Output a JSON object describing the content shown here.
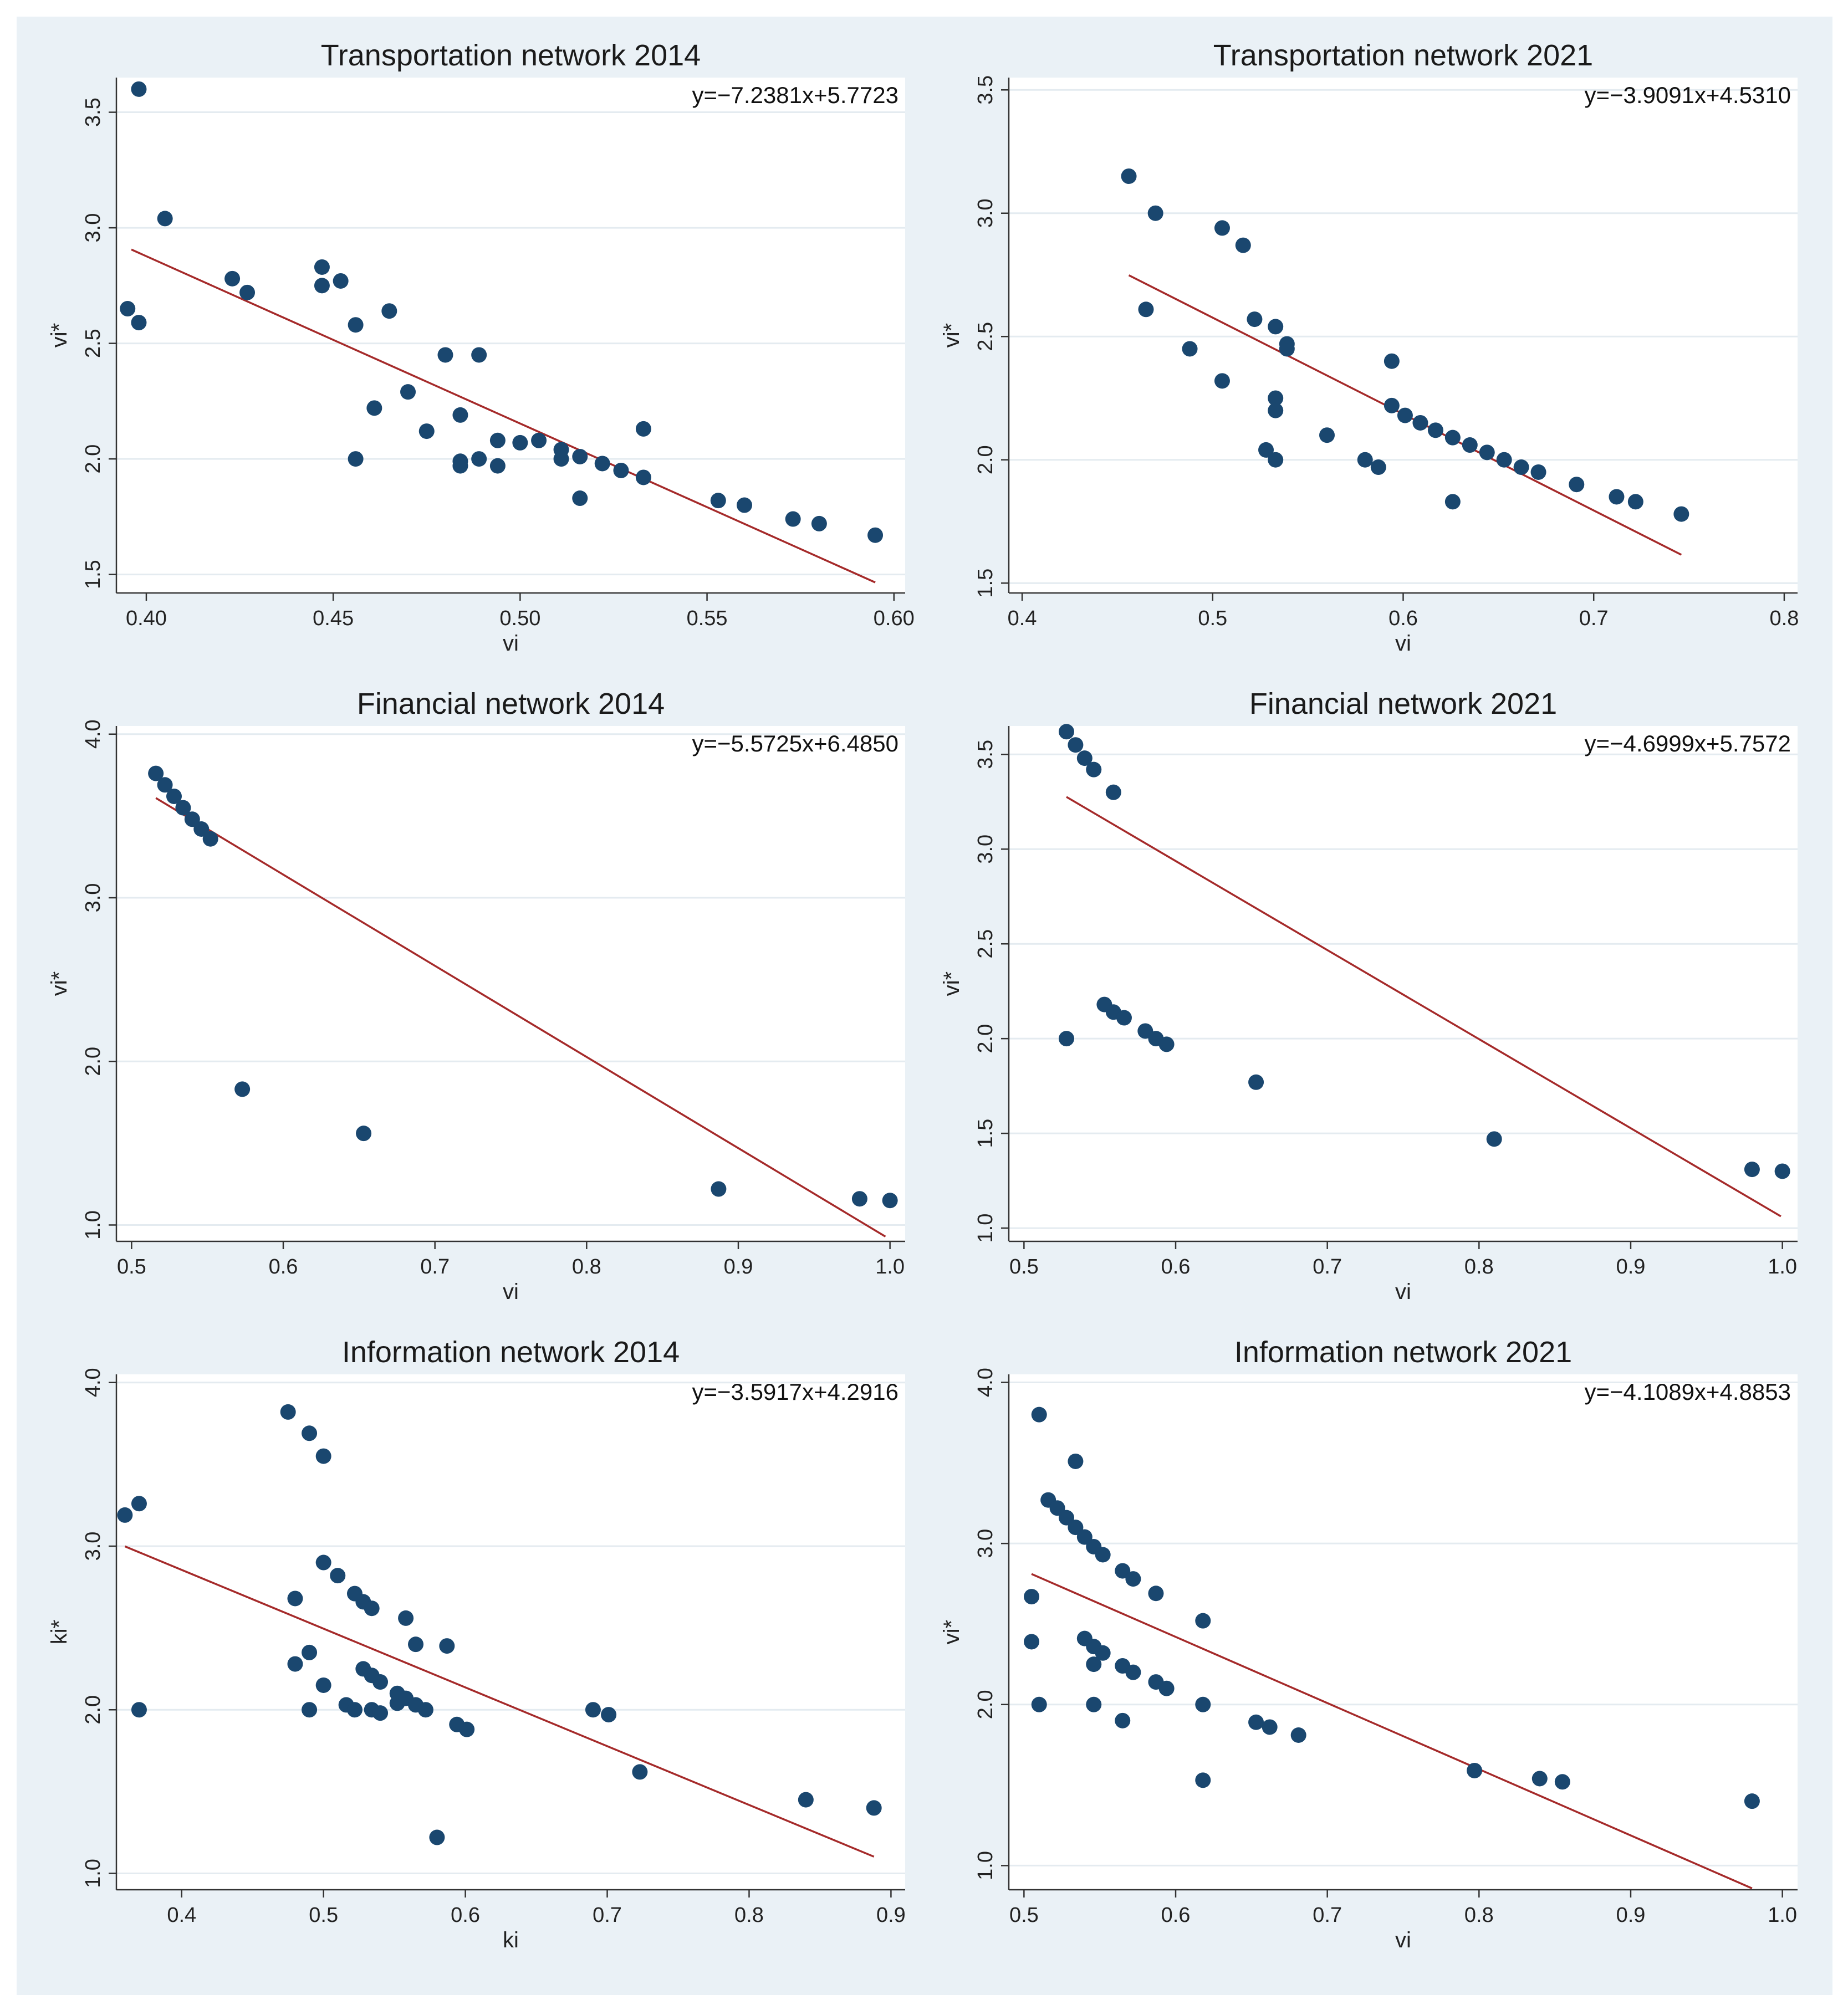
{
  "colors": {
    "background": "#eaf1f6",
    "plot_bg": "#ffffff",
    "grid": "#e4ebf0",
    "point": "#1a476f",
    "fit": "#a52a2a"
  },
  "chart_data": [
    {
      "type": "scatter",
      "title": "Transportation network 2014",
      "xlabel": "vi",
      "ylabel": "vi*",
      "equation": "y=−7.2381x+5.7723",
      "xlim": [
        0.392,
        0.603
      ],
      "ylim": [
        1.42,
        3.65
      ],
      "xticks": [
        "0.40",
        "0.45",
        "0.50",
        "0.55",
        "0.60"
      ],
      "yticks": [
        "1.5",
        "2.0",
        "2.5",
        "3.0",
        "3.5"
      ],
      "fit_x": [
        0.396,
        0.595
      ],
      "points": [
        [
          0.395,
          2.65
        ],
        [
          0.398,
          3.6
        ],
        [
          0.398,
          2.59
        ],
        [
          0.405,
          3.04
        ],
        [
          0.423,
          2.78
        ],
        [
          0.427,
          2.72
        ],
        [
          0.447,
          2.83
        ],
        [
          0.447,
          2.75
        ],
        [
          0.452,
          2.77
        ],
        [
          0.456,
          2.58
        ],
        [
          0.456,
          2.0
        ],
        [
          0.461,
          2.22
        ],
        [
          0.465,
          2.64
        ],
        [
          0.47,
          2.29
        ],
        [
          0.475,
          2.12
        ],
        [
          0.48,
          2.45
        ],
        [
          0.484,
          2.19
        ],
        [
          0.484,
          1.99
        ],
        [
          0.484,
          1.97
        ],
        [
          0.489,
          2.45
        ],
        [
          0.489,
          2.0
        ],
        [
          0.494,
          2.08
        ],
        [
          0.494,
          1.97
        ],
        [
          0.5,
          2.07
        ],
        [
          0.505,
          2.08
        ],
        [
          0.511,
          2.04
        ],
        [
          0.511,
          2.0
        ],
        [
          0.516,
          2.01
        ],
        [
          0.516,
          1.83
        ],
        [
          0.522,
          1.98
        ],
        [
          0.527,
          1.95
        ],
        [
          0.533,
          2.13
        ],
        [
          0.533,
          1.92
        ],
        [
          0.553,
          1.82
        ],
        [
          0.56,
          1.8
        ],
        [
          0.573,
          1.74
        ],
        [
          0.58,
          1.72
        ],
        [
          0.595,
          1.67
        ]
      ]
    },
    {
      "type": "scatter",
      "title": "Transportation network 2021",
      "xlabel": "vi",
      "ylabel": "vi*",
      "equation": "y=−3.9091x+4.5310",
      "xlim": [
        0.393,
        0.807
      ],
      "ylim": [
        1.46,
        3.55
      ],
      "xticks": [
        "0.4",
        "0.5",
        "0.6",
        "0.7",
        "0.8"
      ],
      "yticks": [
        "1.5",
        "2.0",
        "2.5",
        "3.0",
        "3.5"
      ],
      "fit_x": [
        0.456,
        0.746
      ],
      "points": [
        [
          0.456,
          3.15
        ],
        [
          0.465,
          2.61
        ],
        [
          0.47,
          3.0
        ],
        [
          0.488,
          2.45
        ],
        [
          0.505,
          2.94
        ],
        [
          0.505,
          2.32
        ],
        [
          0.516,
          2.87
        ],
        [
          0.522,
          2.57
        ],
        [
          0.528,
          2.04
        ],
        [
          0.533,
          2.54
        ],
        [
          0.533,
          2.25
        ],
        [
          0.533,
          2.2
        ],
        [
          0.533,
          2.0
        ],
        [
          0.539,
          2.47
        ],
        [
          0.539,
          2.45
        ],
        [
          0.56,
          2.1
        ],
        [
          0.58,
          2.0
        ],
        [
          0.587,
          1.97
        ],
        [
          0.594,
          2.4
        ],
        [
          0.594,
          2.22
        ],
        [
          0.601,
          2.18
        ],
        [
          0.609,
          2.15
        ],
        [
          0.617,
          2.12
        ],
        [
          0.626,
          2.09
        ],
        [
          0.626,
          1.83
        ],
        [
          0.635,
          2.06
        ],
        [
          0.644,
          2.03
        ],
        [
          0.653,
          2.0
        ],
        [
          0.662,
          1.97
        ],
        [
          0.671,
          1.95
        ],
        [
          0.691,
          1.9
        ],
        [
          0.712,
          1.85
        ],
        [
          0.722,
          1.83
        ],
        [
          0.746,
          1.78
        ]
      ]
    },
    {
      "type": "scatter",
      "title": "Financial network 2014",
      "xlabel": "vi",
      "ylabel": "vi*",
      "equation": "y=−5.5725x+6.4850",
      "xlim": [
        0.49,
        1.01
      ],
      "ylim": [
        0.9,
        4.05
      ],
      "xticks": [
        "0.5",
        "0.6",
        "0.7",
        "0.8",
        "0.9",
        "1.0"
      ],
      "yticks": [
        "1.0",
        "2.0",
        "3.0",
        "4.0"
      ],
      "fit_x": [
        0.516,
        0.997
      ],
      "points": [
        [
          0.516,
          3.76
        ],
        [
          0.522,
          3.69
        ],
        [
          0.528,
          3.62
        ],
        [
          0.534,
          3.55
        ],
        [
          0.54,
          3.48
        ],
        [
          0.546,
          3.42
        ],
        [
          0.552,
          3.36
        ],
        [
          0.573,
          1.83
        ],
        [
          0.653,
          1.56
        ],
        [
          0.887,
          1.22
        ],
        [
          0.98,
          1.16
        ],
        [
          1.0,
          1.15
        ]
      ]
    },
    {
      "type": "scatter",
      "title": "Financial network 2021",
      "xlabel": "vi",
      "ylabel": "vi*",
      "equation": "y=−4.6999x+5.7572",
      "xlim": [
        0.49,
        1.01
      ],
      "ylim": [
        0.93,
        3.65
      ],
      "xticks": [
        "0.5",
        "0.6",
        "0.7",
        "0.8",
        "0.9",
        "1.0"
      ],
      "yticks": [
        "1.0",
        "1.5",
        "2.0",
        "2.5",
        "3.0",
        "3.5"
      ],
      "fit_x": [
        0.528,
        0.999
      ],
      "points": [
        [
          0.528,
          3.62
        ],
        [
          0.528,
          2.0
        ],
        [
          0.534,
          3.55
        ],
        [
          0.54,
          3.48
        ],
        [
          0.546,
          3.42
        ],
        [
          0.553,
          2.18
        ],
        [
          0.559,
          3.3
        ],
        [
          0.559,
          2.14
        ],
        [
          0.566,
          2.11
        ],
        [
          0.58,
          2.04
        ],
        [
          0.587,
          2.0
        ],
        [
          0.594,
          1.97
        ],
        [
          0.653,
          1.77
        ],
        [
          0.81,
          1.47
        ],
        [
          0.98,
          1.31
        ],
        [
          1.0,
          1.3
        ]
      ]
    },
    {
      "type": "scatter",
      "title": "Information network 2014",
      "xlabel": "ki",
      "ylabel": "ki*",
      "equation": "y=−3.5917x+4.2916",
      "xlim": [
        0.354,
        0.91
      ],
      "ylim": [
        0.9,
        4.05
      ],
      "xticks": [
        "0.4",
        "0.5",
        "0.6",
        "0.7",
        "0.8",
        "0.9"
      ],
      "yticks": [
        "1.0",
        "2.0",
        "3.0",
        "4.0"
      ],
      "fit_x": [
        0.36,
        0.888
      ],
      "points": [
        [
          0.36,
          3.19
        ],
        [
          0.37,
          3.26
        ],
        [
          0.37,
          2.0
        ],
        [
          0.475,
          3.82
        ],
        [
          0.48,
          2.68
        ],
        [
          0.48,
          2.28
        ],
        [
          0.49,
          3.69
        ],
        [
          0.49,
          2.35
        ],
        [
          0.49,
          2.0
        ],
        [
          0.5,
          3.55
        ],
        [
          0.5,
          2.9
        ],
        [
          0.5,
          2.15
        ],
        [
          0.51,
          2.82
        ],
        [
          0.516,
          2.03
        ],
        [
          0.522,
          2.71
        ],
        [
          0.522,
          2.0
        ],
        [
          0.528,
          2.66
        ],
        [
          0.528,
          2.25
        ],
        [
          0.534,
          2.62
        ],
        [
          0.534,
          2.21
        ],
        [
          0.534,
          2.0
        ],
        [
          0.54,
          2.17
        ],
        [
          0.54,
          1.98
        ],
        [
          0.552,
          2.1
        ],
        [
          0.552,
          2.04
        ],
        [
          0.558,
          2.56
        ],
        [
          0.558,
          2.07
        ],
        [
          0.565,
          2.4
        ],
        [
          0.565,
          2.03
        ],
        [
          0.572,
          2.0
        ],
        [
          0.58,
          1.22
        ],
        [
          0.587,
          2.39
        ],
        [
          0.594,
          1.91
        ],
        [
          0.601,
          1.88
        ],
        [
          0.69,
          2.0
        ],
        [
          0.701,
          1.97
        ],
        [
          0.723,
          1.62
        ],
        [
          0.84,
          1.45
        ],
        [
          0.888,
          1.4
        ]
      ]
    },
    {
      "type": "scatter",
      "title": "Information network 2021",
      "xlabel": "vi",
      "ylabel": "vi*",
      "equation": "y=−4.1089x+4.8853",
      "xlim": [
        0.49,
        1.01
      ],
      "ylim": [
        0.85,
        4.05
      ],
      "xticks": [
        "0.5",
        "0.6",
        "0.7",
        "0.8",
        "0.9",
        "1.0"
      ],
      "yticks": [
        "1.0",
        "2.0",
        "3.0",
        "4.0"
      ],
      "fit_x": [
        0.505,
        0.98
      ],
      "points": [
        [
          0.505,
          2.67
        ],
        [
          0.505,
          2.39
        ],
        [
          0.51,
          3.8
        ],
        [
          0.51,
          2.0
        ],
        [
          0.516,
          3.27
        ],
        [
          0.522,
          3.22
        ],
        [
          0.528,
          3.16
        ],
        [
          0.534,
          3.51
        ],
        [
          0.534,
          3.1
        ],
        [
          0.54,
          3.04
        ],
        [
          0.54,
          2.41
        ],
        [
          0.546,
          2.98
        ],
        [
          0.546,
          2.36
        ],
        [
          0.546,
          2.25
        ],
        [
          0.546,
          2.0
        ],
        [
          0.552,
          2.93
        ],
        [
          0.552,
          2.32
        ],
        [
          0.565,
          2.83
        ],
        [
          0.565,
          2.24
        ],
        [
          0.565,
          1.9
        ],
        [
          0.572,
          2.78
        ],
        [
          0.572,
          2.2
        ],
        [
          0.587,
          2.69
        ],
        [
          0.587,
          2.14
        ],
        [
          0.594,
          2.1
        ],
        [
          0.618,
          2.52
        ],
        [
          0.618,
          2.0
        ],
        [
          0.618,
          1.53
        ],
        [
          0.653,
          1.89
        ],
        [
          0.662,
          1.86
        ],
        [
          0.681,
          1.81
        ],
        [
          0.797,
          1.59
        ],
        [
          0.84,
          1.54
        ],
        [
          0.855,
          1.52
        ],
        [
          0.98,
          1.4
        ]
      ]
    }
  ]
}
